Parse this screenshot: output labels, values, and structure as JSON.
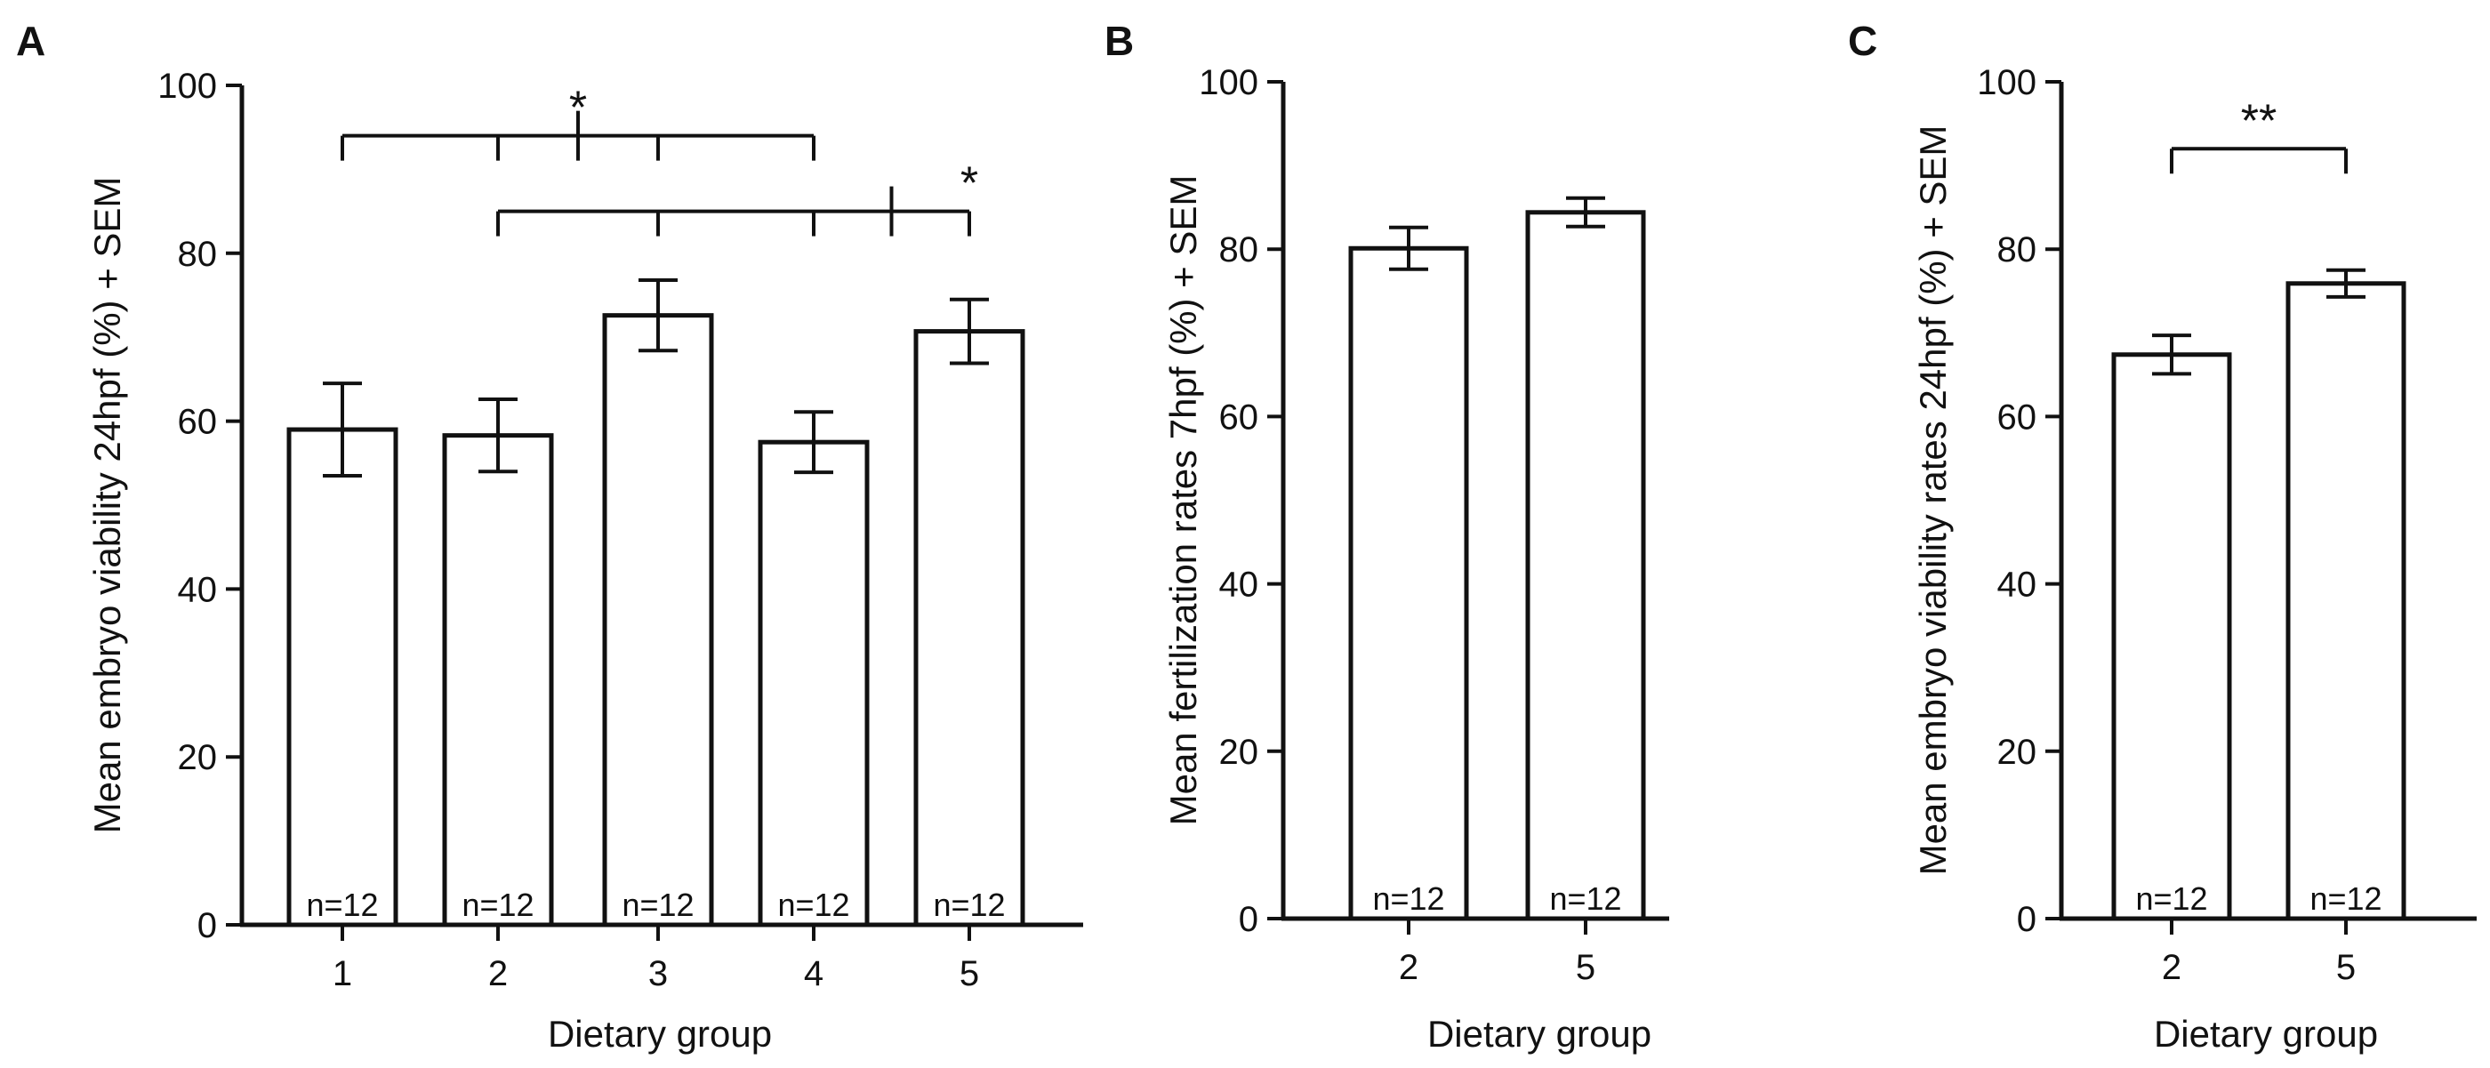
{
  "chart_data": [
    {
      "panel": "A",
      "type": "bar",
      "categories": [
        "1",
        "2",
        "3",
        "4",
        "5"
      ],
      "values": [
        59,
        58.3,
        72.6,
        57.5,
        70.7
      ],
      "errors": [
        5.5,
        4.3,
        4.2,
        3.6,
        3.8
      ],
      "n_labels": [
        "n=12",
        "n=12",
        "n=12",
        "n=12",
        "n=12"
      ],
      "ylabel": "Mean embryo viability 24hpf (%) + SEM",
      "xlabel": "Dietary group",
      "ylim": [
        0,
        100
      ],
      "yticks": [
        0,
        20,
        40,
        60,
        80,
        100
      ],
      "significance": [
        {
          "label": "*",
          "left_groups": [
            "1",
            "2"
          ],
          "right_groups": [
            "3",
            "4"
          ],
          "y": 94
        },
        {
          "label": "*",
          "left_groups": [
            "2",
            "3",
            "4"
          ],
          "right_groups": [
            "5"
          ],
          "y": 85
        }
      ]
    },
    {
      "panel": "B",
      "type": "bar",
      "categories": [
        "2",
        "5"
      ],
      "values": [
        80.1,
        84.4
      ],
      "errors": [
        2.5,
        1.7
      ],
      "n_labels": [
        "n=12",
        "n=12"
      ],
      "ylabel": "Mean fertilization rates 7hpf (%) + SEM",
      "xlabel": "Dietary group",
      "ylim": [
        0,
        100
      ],
      "yticks": [
        0,
        20,
        40,
        60,
        80,
        100
      ],
      "significance": []
    },
    {
      "panel": "C",
      "type": "bar",
      "categories": [
        "2",
        "5"
      ],
      "values": [
        67.4,
        75.9
      ],
      "errors": [
        2.3,
        1.6
      ],
      "n_labels": [
        "n=12",
        "n=12"
      ],
      "ylabel": "Mean embryo viability rates 24hpf (%) + SEM",
      "xlabel": "Dietary group",
      "ylim": [
        0,
        100
      ],
      "yticks": [
        0,
        20,
        40,
        60,
        80,
        100
      ],
      "significance": [
        {
          "label": "**",
          "left_groups": [
            "2"
          ],
          "right_groups": [
            "5"
          ],
          "y": 92
        }
      ]
    }
  ]
}
